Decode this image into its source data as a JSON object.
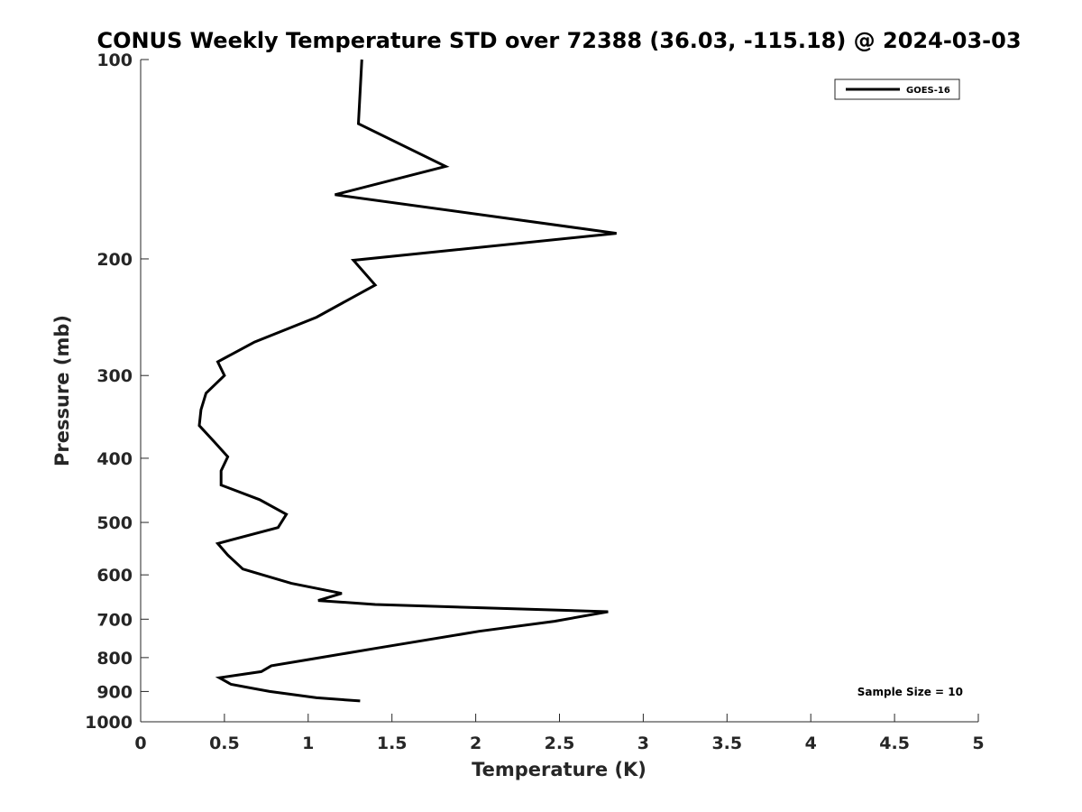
{
  "chart_data": {
    "type": "line",
    "title": "CONUS Weekly Temperature STD over 72388 (36.03, -115.18) @ 2024-03-03",
    "xlabel": "Temperature (K)",
    "ylabel": "Pressure (mb)",
    "xlim": [
      0,
      5
    ],
    "ylim": [
      1000,
      100
    ],
    "y_scale": "log",
    "y_reversed": true,
    "grid": false,
    "x_ticks": [
      "0",
      "0.5",
      "1",
      "1.5",
      "2",
      "2.5",
      "3",
      "3.5",
      "4",
      "4.5",
      "5"
    ],
    "y_ticks": [
      "100",
      "200",
      "300",
      "400",
      "500",
      "600",
      "700",
      "800",
      "900",
      "1000"
    ],
    "legend_position": "top-right",
    "annotation": "Sample Size = 10",
    "series": [
      {
        "name": "GOES-16",
        "color": "#000000",
        "x": [
          1.32,
          1.3,
          1.82,
          1.16,
          2.84,
          1.27,
          1.4,
          1.05,
          0.68,
          0.46,
          0.5,
          0.39,
          0.36,
          0.35,
          0.44,
          0.52,
          0.48,
          0.48,
          0.71,
          0.87,
          0.82,
          0.46,
          0.52,
          0.61,
          0.9,
          1.2,
          1.06,
          1.4,
          2.79,
          2.47,
          2.02,
          1.4,
          1.02,
          0.78,
          0.72,
          0.47,
          0.54,
          0.77,
          1.05,
          1.31
        ],
        "y": [
          100,
          125,
          145,
          160,
          183,
          201,
          219,
          245,
          267,
          286,
          300,
          319,
          338,
          357,
          378,
          398,
          418,
          439,
          462,
          486,
          509,
          538,
          560,
          588,
          618,
          640,
          656,
          665,
          682,
          705,
          730,
          775,
          804,
          823,
          840,
          858,
          878,
          900,
          920,
          930
        ]
      }
    ]
  }
}
